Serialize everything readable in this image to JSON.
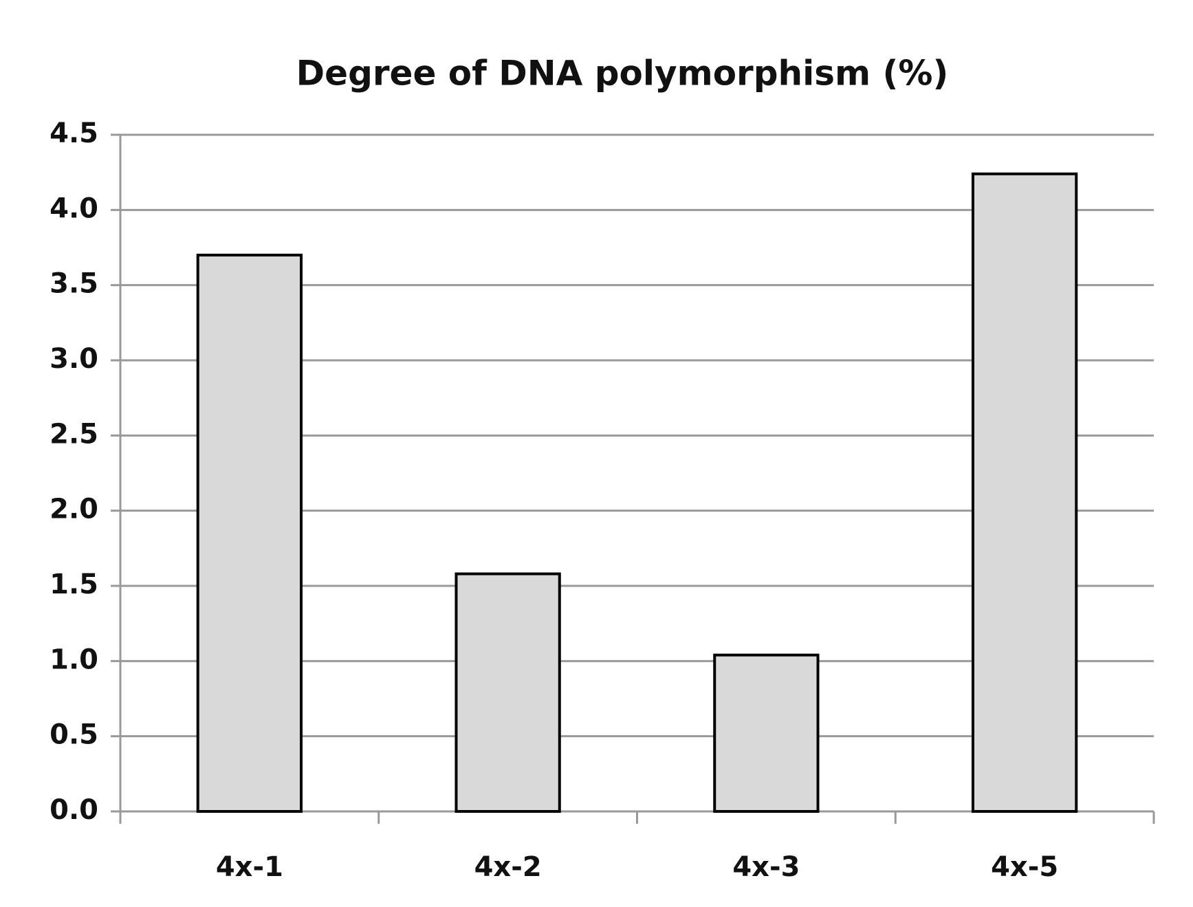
{
  "chart_data": {
    "type": "bar",
    "title": "Degree of DNA polymorphism  (%)",
    "categories": [
      "4x-1",
      "4x-2",
      "4x-3",
      "4x-5"
    ],
    "values": [
      3.7,
      1.58,
      1.04,
      4.24
    ],
    "color": "#d9d9d9",
    "ylim": [
      0,
      4.5
    ],
    "yticks": [
      {
        "value": 0,
        "label": "0.0"
      },
      0.5,
      {
        "value": 1,
        "label": "1.0"
      },
      1.5,
      {
        "value": 2,
        "label": "2.0"
      },
      2.5,
      {
        "value": 3,
        "label": "3.0"
      },
      3.5,
      {
        "value": 4,
        "label": "4.0"
      },
      4.5
    ],
    "grid": true
  }
}
